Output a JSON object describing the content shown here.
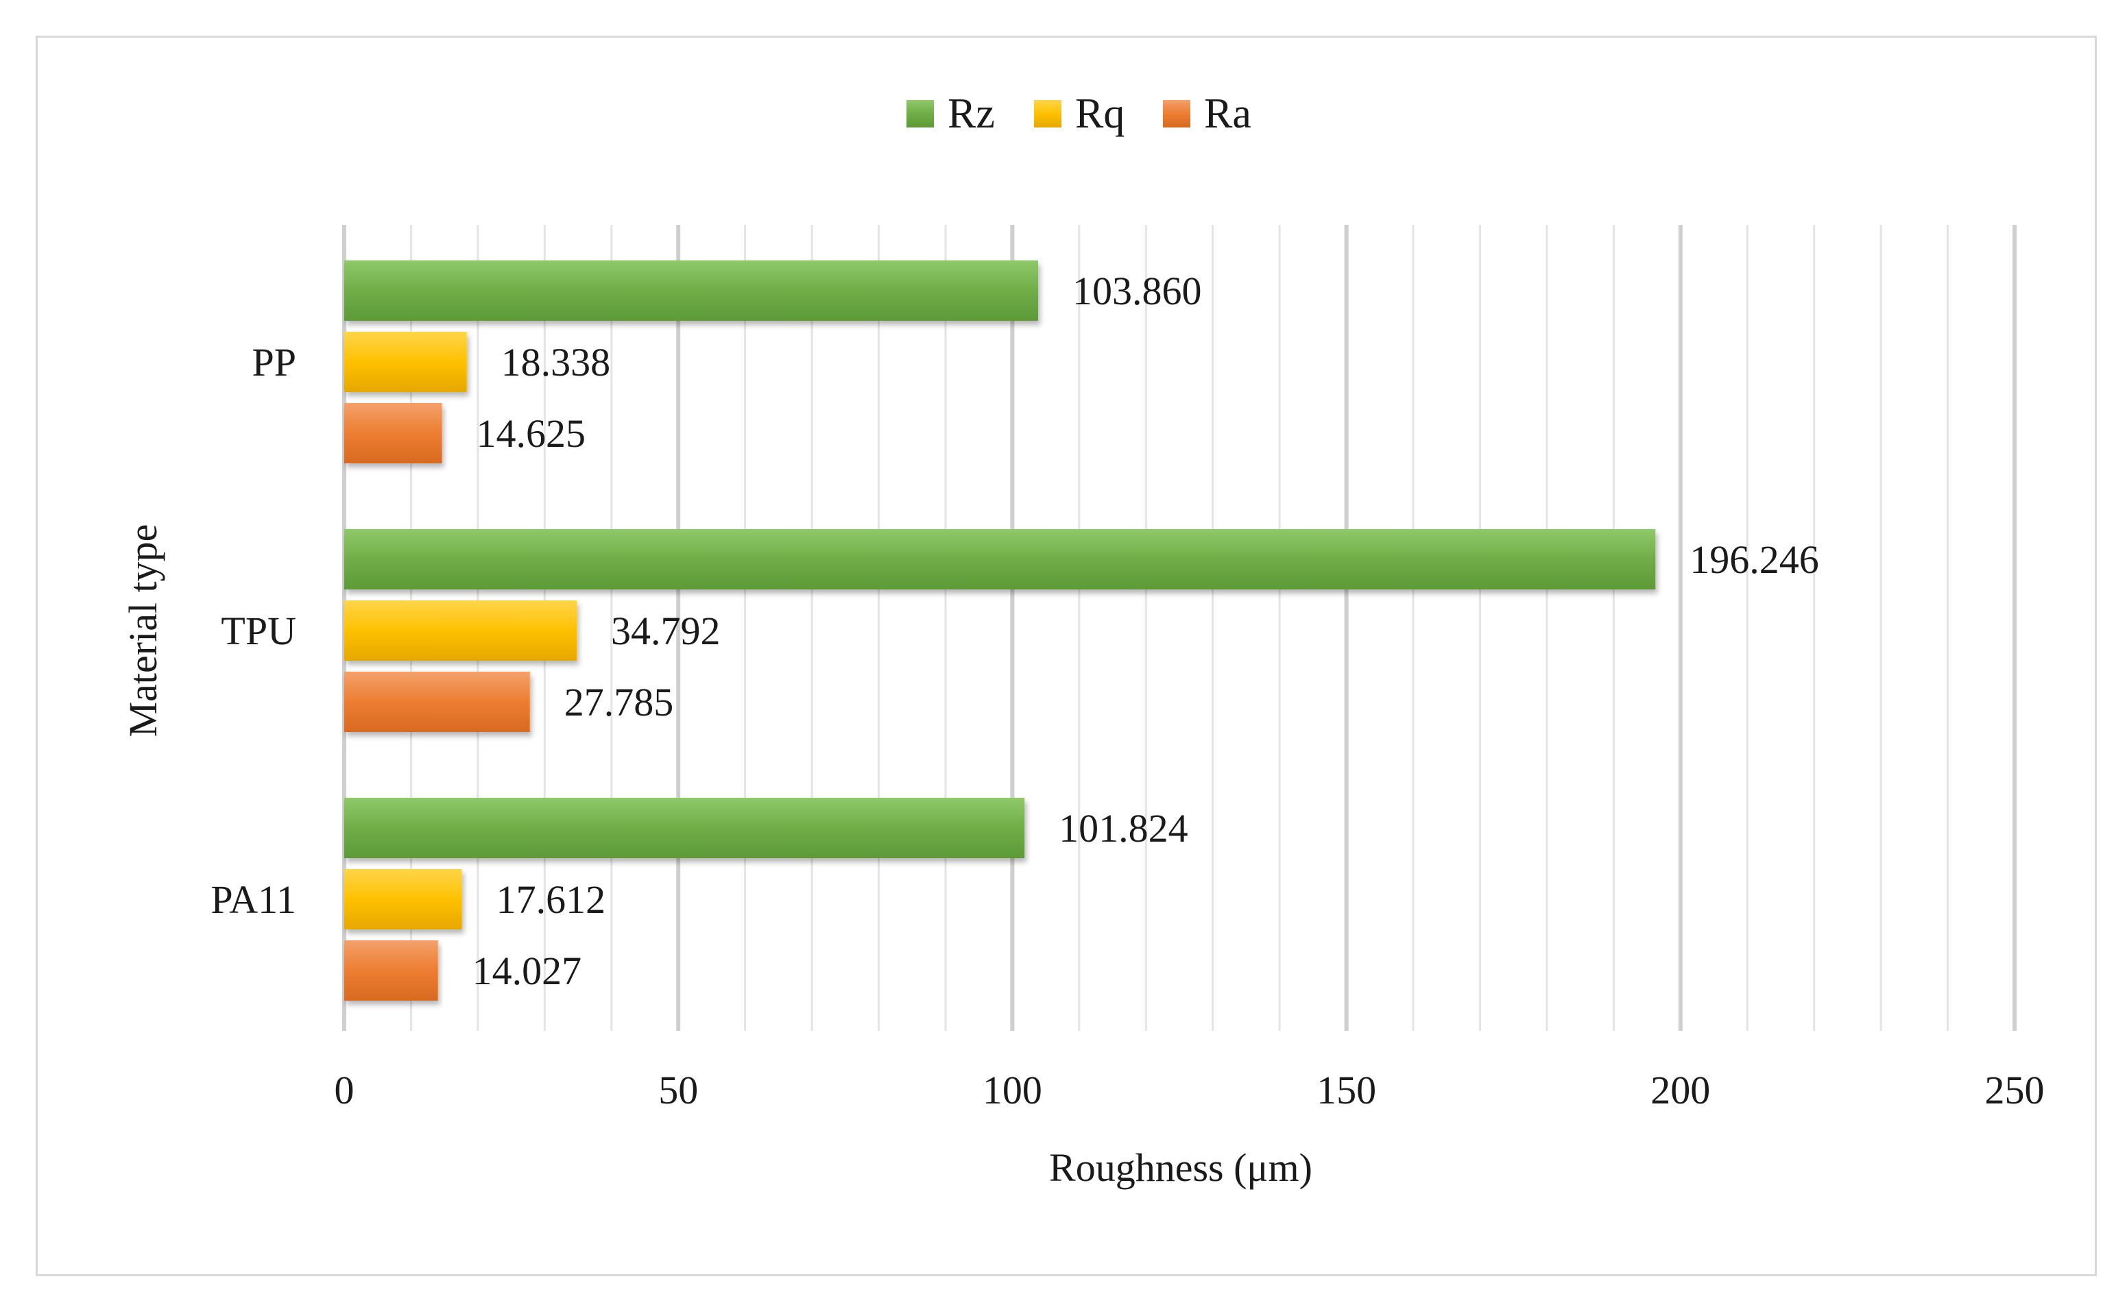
{
  "chart_data": {
    "type": "bar",
    "orientation": "horizontal",
    "categories": [
      "PA11",
      "TPU",
      "PP"
    ],
    "series": [
      {
        "name": "Ra",
        "values": [
          14.027,
          27.785,
          14.625
        ],
        "color": "#ed7d31"
      },
      {
        "name": "Rq",
        "values": [
          17.612,
          34.792,
          18.338
        ],
        "color": "#ffc000"
      },
      {
        "name": "Rz",
        "values": [
          101.824,
          196.246,
          103.86
        ],
        "color": "#70ad47"
      }
    ],
    "data_labels": {
      "Ra": [
        "14.027",
        "27.785",
        "14.625"
      ],
      "Rq": [
        "17.612",
        "34.792",
        "18.338"
      ],
      "Rz": [
        "101.824",
        "196.246",
        "103.860"
      ]
    },
    "legend": {
      "entries": [
        "Rz",
        "Rq",
        "Ra"
      ],
      "placement": "top-center"
    },
    "xlabel": "Roughness (μm)",
    "ylabel": "Material type",
    "xlim": [
      0,
      250
    ],
    "xticks": [
      0,
      50,
      100,
      150,
      200,
      250
    ],
    "xtick_labels": [
      "0",
      "50",
      "100",
      "150",
      "200",
      "250"
    ],
    "minor_gridline_step": 10,
    "grid": true
  }
}
